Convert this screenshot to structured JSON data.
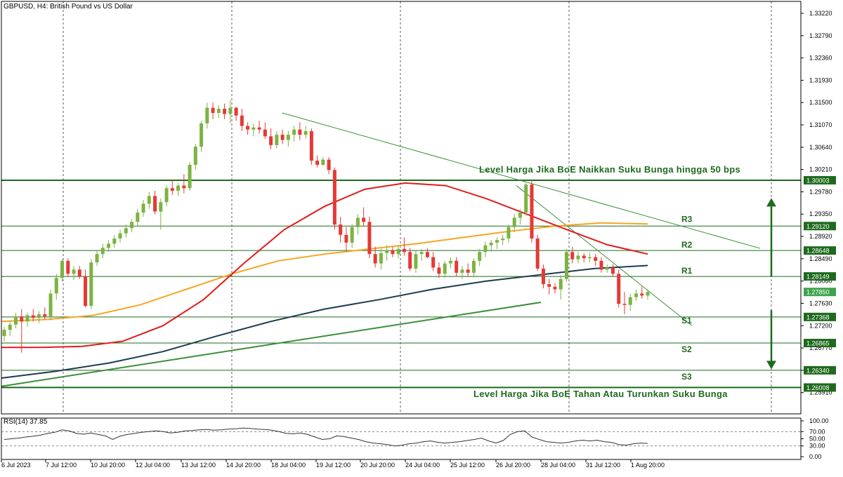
{
  "header": {
    "symbol_title": "GBPUSD, H4:  British Pound vs US Dollar",
    "rsi_title": "RSI(14) 37.85"
  },
  "colors": {
    "bull": "#7cb342",
    "bear": "#e53935",
    "ma_red": "#e31b1b",
    "ma_orange": "#f5a623",
    "ma_navy": "#1d3c4e",
    "level": "#1e6a1e",
    "trend": "#3a8f3a",
    "current_tag": "#3fa34d"
  },
  "chart_data": {
    "type": "candlestick",
    "symbol": "GBPUSD",
    "timeframe": "H4",
    "ylim": [
      1.255,
      1.3345
    ],
    "y_ticks": [
      "1.33220",
      "1.32790",
      "1.32360",
      "1.31930",
      "1.31500",
      "1.31070",
      "1.30640",
      "1.30210",
      "1.29780",
      "1.29350",
      "1.28920",
      "1.28490",
      "1.28060",
      "1.27630",
      "1.27200",
      "1.26770",
      "1.26340",
      "1.25910"
    ],
    "x_labels": [
      "6 Jul 2023",
      "7 Jul 12:00",
      "10 Jul 20:00",
      "12 Jul 04:00",
      "13 Jul 12:00",
      "14 Jul 20:00",
      "18 Jul 04:00",
      "19 Jul 12:00",
      "20 Jul 20:00",
      "24 Jul 04:00",
      "25 Jul 12:00",
      "26 Jul 20:00",
      "28 Jul 04:00",
      "31 Jul 12:00",
      "1 Aug 20:00"
    ],
    "current_price": "1.27850",
    "levels": [
      {
        "label": "",
        "value": 1.30003,
        "tag": "1.30003",
        "bold": true
      },
      {
        "label": "R3",
        "value": 1.2912,
        "tag": "1.29120",
        "bold": false
      },
      {
        "label": "R2",
        "value": 1.28648,
        "tag": "1.28648",
        "bold": false
      },
      {
        "label": "R1",
        "value": 1.28149,
        "tag": "1.28149",
        "bold": false
      },
      {
        "label": "S1",
        "value": 1.27368,
        "tag": "1.27368",
        "bold": false
      },
      {
        "label": "S2",
        "value": 1.26865,
        "tag": "1.26865",
        "bold": false
      },
      {
        "label": "S3",
        "value": 1.2634,
        "tag": "1.26340",
        "bold": false
      },
      {
        "label": "",
        "value": 1.26008,
        "tag": "1.26008",
        "bold": true
      }
    ],
    "annotations": {
      "upper": "Level Harga Jika BoE Naikkan Suku Bunga hingga 50 bps",
      "lower": "Level Harga Jika BoE Tahan Atau Turunkan Suku Bunga"
    },
    "candles": [
      {
        "o": 1.27,
        "h": 1.2718,
        "l": 1.269,
        "c": 1.2712
      },
      {
        "o": 1.2712,
        "h": 1.273,
        "l": 1.27,
        "c": 1.2722
      },
      {
        "o": 1.2722,
        "h": 1.2745,
        "l": 1.2715,
        "c": 1.2738
      },
      {
        "o": 1.2738,
        "h": 1.2752,
        "l": 1.2668,
        "c": 1.2728
      },
      {
        "o": 1.2728,
        "h": 1.2745,
        "l": 1.2718,
        "c": 1.274
      },
      {
        "o": 1.274,
        "h": 1.2752,
        "l": 1.2728,
        "c": 1.2735
      },
      {
        "o": 1.2735,
        "h": 1.2748,
        "l": 1.2725,
        "c": 1.2742
      },
      {
        "o": 1.2742,
        "h": 1.2755,
        "l": 1.2732,
        "c": 1.2738
      },
      {
        "o": 1.2738,
        "h": 1.279,
        "l": 1.273,
        "c": 1.2782
      },
      {
        "o": 1.2782,
        "h": 1.282,
        "l": 1.277,
        "c": 1.2812
      },
      {
        "o": 1.2812,
        "h": 1.2848,
        "l": 1.2805,
        "c": 1.2845
      },
      {
        "o": 1.2845,
        "h": 1.285,
        "l": 1.2815,
        "c": 1.282
      },
      {
        "o": 1.282,
        "h": 1.2835,
        "l": 1.2808,
        "c": 1.2828
      },
      {
        "o": 1.2828,
        "h": 1.2835,
        "l": 1.281,
        "c": 1.2815
      },
      {
        "o": 1.2815,
        "h": 1.2828,
        "l": 1.2755,
        "c": 1.2758
      },
      {
        "o": 1.2758,
        "h": 1.2848,
        "l": 1.2752,
        "c": 1.2842
      },
      {
        "o": 1.2842,
        "h": 1.2865,
        "l": 1.2835,
        "c": 1.2858
      },
      {
        "o": 1.2858,
        "h": 1.2878,
        "l": 1.285,
        "c": 1.287
      },
      {
        "o": 1.287,
        "h": 1.2885,
        "l": 1.2862,
        "c": 1.2878
      },
      {
        "o": 1.2878,
        "h": 1.2895,
        "l": 1.287,
        "c": 1.2888
      },
      {
        "o": 1.2888,
        "h": 1.2905,
        "l": 1.288,
        "c": 1.2898
      },
      {
        "o": 1.2898,
        "h": 1.2915,
        "l": 1.289,
        "c": 1.2908
      },
      {
        "o": 1.2908,
        "h": 1.2925,
        "l": 1.29,
        "c": 1.292
      },
      {
        "o": 1.292,
        "h": 1.2945,
        "l": 1.2912,
        "c": 1.2938
      },
      {
        "o": 1.2938,
        "h": 1.2962,
        "l": 1.293,
        "c": 1.2955
      },
      {
        "o": 1.2955,
        "h": 1.2978,
        "l": 1.2945,
        "c": 1.297
      },
      {
        "o": 1.297,
        "h": 1.298,
        "l": 1.2935,
        "c": 1.294
      },
      {
        "o": 1.294,
        "h": 1.2965,
        "l": 1.2905,
        "c": 1.2958
      },
      {
        "o": 1.2958,
        "h": 1.299,
        "l": 1.295,
        "c": 1.2985
      },
      {
        "o": 1.2985,
        "h": 1.3,
        "l": 1.2972,
        "c": 1.298
      },
      {
        "o": 1.298,
        "h": 1.2995,
        "l": 1.297,
        "c": 1.299
      },
      {
        "o": 1.299,
        "h": 1.3012,
        "l": 1.2975,
        "c": 1.2985
      },
      {
        "o": 1.2985,
        "h": 1.3035,
        "l": 1.298,
        "c": 1.303
      },
      {
        "o": 1.303,
        "h": 1.307,
        "l": 1.302,
        "c": 1.3065
      },
      {
        "o": 1.3065,
        "h": 1.3115,
        "l": 1.3055,
        "c": 1.311
      },
      {
        "o": 1.311,
        "h": 1.315,
        "l": 1.31,
        "c": 1.314
      },
      {
        "o": 1.314,
        "h": 1.315,
        "l": 1.3118,
        "c": 1.313
      },
      {
        "o": 1.313,
        "h": 1.3145,
        "l": 1.312,
        "c": 1.3138
      },
      {
        "o": 1.3138,
        "h": 1.3148,
        "l": 1.3118,
        "c": 1.3128
      },
      {
        "o": 1.3128,
        "h": 1.3155,
        "l": 1.311,
        "c": 1.314
      },
      {
        "o": 1.314,
        "h": 1.3142,
        "l": 1.3115,
        "c": 1.3125
      },
      {
        "o": 1.3125,
        "h": 1.3138,
        "l": 1.3095,
        "c": 1.3105
      },
      {
        "o": 1.3105,
        "h": 1.3112,
        "l": 1.3088,
        "c": 1.3098
      },
      {
        "o": 1.3098,
        "h": 1.311,
        "l": 1.3085,
        "c": 1.3102
      },
      {
        "o": 1.3102,
        "h": 1.3115,
        "l": 1.309,
        "c": 1.3098
      },
      {
        "o": 1.3098,
        "h": 1.3112,
        "l": 1.308,
        "c": 1.3085
      },
      {
        "o": 1.3085,
        "h": 1.31,
        "l": 1.306,
        "c": 1.3068
      },
      {
        "o": 1.3068,
        "h": 1.3095,
        "l": 1.3062,
        "c": 1.3088
      },
      {
        "o": 1.3088,
        "h": 1.3098,
        "l": 1.307,
        "c": 1.3078
      },
      {
        "o": 1.3078,
        "h": 1.3095,
        "l": 1.3065,
        "c": 1.3088
      },
      {
        "o": 1.3088,
        "h": 1.3105,
        "l": 1.3075,
        "c": 1.3098
      },
      {
        "o": 1.3098,
        "h": 1.3112,
        "l": 1.3078,
        "c": 1.3088
      },
      {
        "o": 1.3088,
        "h": 1.3105,
        "l": 1.308,
        "c": 1.3095
      },
      {
        "o": 1.3095,
        "h": 1.31,
        "l": 1.303,
        "c": 1.3038
      },
      {
        "o": 1.3038,
        "h": 1.3048,
        "l": 1.3025,
        "c": 1.303
      },
      {
        "o": 1.303,
        "h": 1.3045,
        "l": 1.3028,
        "c": 1.304
      },
      {
        "o": 1.304,
        "h": 1.3045,
        "l": 1.3012,
        "c": 1.302
      },
      {
        "o": 1.302,
        "h": 1.3025,
        "l": 1.2905,
        "c": 1.2915
      },
      {
        "o": 1.2915,
        "h": 1.293,
        "l": 1.288,
        "c": 1.2895
      },
      {
        "o": 1.2895,
        "h": 1.291,
        "l": 1.2865,
        "c": 1.288
      },
      {
        "o": 1.288,
        "h": 1.2915,
        "l": 1.287,
        "c": 1.291
      },
      {
        "o": 1.291,
        "h": 1.2935,
        "l": 1.2895,
        "c": 1.2928
      },
      {
        "o": 1.2928,
        "h": 1.2948,
        "l": 1.2912,
        "c": 1.292
      },
      {
        "o": 1.292,
        "h": 1.293,
        "l": 1.285,
        "c": 1.2858
      },
      {
        "o": 1.2858,
        "h": 1.2872,
        "l": 1.2832,
        "c": 1.284
      },
      {
        "o": 1.284,
        "h": 1.2868,
        "l": 1.2828,
        "c": 1.286
      },
      {
        "o": 1.286,
        "h": 1.2875,
        "l": 1.2845,
        "c": 1.2865
      },
      {
        "o": 1.2865,
        "h": 1.2872,
        "l": 1.2852,
        "c": 1.2858
      },
      {
        "o": 1.2858,
        "h": 1.2875,
        "l": 1.285,
        "c": 1.2868
      },
      {
        "o": 1.2868,
        "h": 1.289,
        "l": 1.2855,
        "c": 1.2862
      },
      {
        "o": 1.2862,
        "h": 1.287,
        "l": 1.2825,
        "c": 1.283
      },
      {
        "o": 1.283,
        "h": 1.2865,
        "l": 1.2822,
        "c": 1.2858
      },
      {
        "o": 1.2858,
        "h": 1.2868,
        "l": 1.2845,
        "c": 1.2862
      },
      {
        "o": 1.2862,
        "h": 1.287,
        "l": 1.285,
        "c": 1.2852
      },
      {
        "o": 1.2852,
        "h": 1.2862,
        "l": 1.2825,
        "c": 1.2832
      },
      {
        "o": 1.2832,
        "h": 1.2842,
        "l": 1.2812,
        "c": 1.282
      },
      {
        "o": 1.282,
        "h": 1.2845,
        "l": 1.2812,
        "c": 1.284
      },
      {
        "o": 1.284,
        "h": 1.2852,
        "l": 1.283,
        "c": 1.2845
      },
      {
        "o": 1.2845,
        "h": 1.2852,
        "l": 1.2815,
        "c": 1.2822
      },
      {
        "o": 1.2822,
        "h": 1.2835,
        "l": 1.281,
        "c": 1.2828
      },
      {
        "o": 1.2828,
        "h": 1.284,
        "l": 1.2815,
        "c": 1.2822
      },
      {
        "o": 1.2822,
        "h": 1.285,
        "l": 1.2815,
        "c": 1.2845
      },
      {
        "o": 1.2845,
        "h": 1.2868,
        "l": 1.2835,
        "c": 1.2862
      },
      {
        "o": 1.2862,
        "h": 1.2882,
        "l": 1.2852,
        "c": 1.2875
      },
      {
        "o": 1.2875,
        "h": 1.2885,
        "l": 1.2862,
        "c": 1.288
      },
      {
        "o": 1.288,
        "h": 1.289,
        "l": 1.2868,
        "c": 1.2885
      },
      {
        "o": 1.2885,
        "h": 1.2895,
        "l": 1.2875,
        "c": 1.2888
      },
      {
        "o": 1.2888,
        "h": 1.2915,
        "l": 1.288,
        "c": 1.291
      },
      {
        "o": 1.291,
        "h": 1.2935,
        "l": 1.29,
        "c": 1.2928
      },
      {
        "o": 1.2928,
        "h": 1.2945,
        "l": 1.2915,
        "c": 1.2938
      },
      {
        "o": 1.2938,
        "h": 1.2995,
        "l": 1.2932,
        "c": 1.2992
      },
      {
        "o": 1.2992,
        "h": 1.2998,
        "l": 1.288,
        "c": 1.2888
      },
      {
        "o": 1.2888,
        "h": 1.2895,
        "l": 1.2825,
        "c": 1.283
      },
      {
        "o": 1.283,
        "h": 1.2838,
        "l": 1.2792,
        "c": 1.28
      },
      {
        "o": 1.28,
        "h": 1.281,
        "l": 1.278,
        "c": 1.2795
      },
      {
        "o": 1.2795,
        "h": 1.2802,
        "l": 1.2782,
        "c": 1.279
      },
      {
        "o": 1.279,
        "h": 1.2818,
        "l": 1.277,
        "c": 1.281
      },
      {
        "o": 1.281,
        "h": 1.2868,
        "l": 1.2805,
        "c": 1.2862
      },
      {
        "o": 1.2862,
        "h": 1.2872,
        "l": 1.284,
        "c": 1.2848
      },
      {
        "o": 1.2848,
        "h": 1.2862,
        "l": 1.284,
        "c": 1.2855
      },
      {
        "o": 1.2855,
        "h": 1.286,
        "l": 1.2842,
        "c": 1.285
      },
      {
        "o": 1.285,
        "h": 1.286,
        "l": 1.2842,
        "c": 1.2852
      },
      {
        "o": 1.2852,
        "h": 1.2858,
        "l": 1.2835,
        "c": 1.2845
      },
      {
        "o": 1.2845,
        "h": 1.2852,
        "l": 1.2822,
        "c": 1.2828
      },
      {
        "o": 1.2828,
        "h": 1.2838,
        "l": 1.2822,
        "c": 1.2832
      },
      {
        "o": 1.2832,
        "h": 1.2838,
        "l": 1.2815,
        "c": 1.282
      },
      {
        "o": 1.282,
        "h": 1.2828,
        "l": 1.2755,
        "c": 1.2762
      },
      {
        "o": 1.2762,
        "h": 1.2785,
        "l": 1.2742,
        "c": 1.276
      },
      {
        "o": 1.276,
        "h": 1.2782,
        "l": 1.2748,
        "c": 1.2775
      },
      {
        "o": 1.2775,
        "h": 1.279,
        "l": 1.2768,
        "c": 1.2782
      },
      {
        "o": 1.2782,
        "h": 1.2795,
        "l": 1.2772,
        "c": 1.2778
      },
      {
        "o": 1.2778,
        "h": 1.279,
        "l": 1.277,
        "c": 1.2785
      }
    ],
    "ma_red": [
      1.2678,
      1.2678,
      1.268,
      1.269,
      1.272,
      1.277,
      1.284,
      1.2905,
      1.295,
      1.2983,
      1.2995,
      1.299,
      1.2965,
      1.2935,
      1.2905,
      1.2876,
      1.2858
    ],
    "ma_orange": [
      1.2728,
      1.2732,
      1.274,
      1.276,
      1.279,
      1.282,
      1.2845,
      1.2858,
      1.2868,
      1.2878,
      1.289,
      1.2902,
      1.2912,
      1.2918,
      1.2916
    ],
    "ma_navy": [
      1.2619,
      1.2632,
      1.2648,
      1.267,
      1.27,
      1.2728,
      1.2752,
      1.277,
      1.279,
      1.2806,
      1.2818,
      1.283,
      1.2836
    ],
    "rsi": {
      "ylim": [
        0,
        100
      ],
      "levels": [
        30,
        70
      ],
      "ticks": [
        "100.00",
        "70.00",
        "50.00",
        "30.00",
        "0.00"
      ],
      "values": [
        48,
        50,
        52,
        55,
        57,
        60,
        65,
        68,
        75,
        72,
        65,
        63,
        66,
        62,
        58,
        48,
        57,
        62,
        65,
        68,
        70,
        72,
        70,
        66,
        68,
        72,
        73,
        75,
        76,
        74,
        75,
        77,
        78,
        80,
        79,
        77,
        76,
        74,
        70,
        65,
        64,
        66,
        62,
        55,
        48,
        50,
        58,
        56,
        52,
        48,
        42,
        38,
        36,
        34,
        30,
        32,
        36,
        38,
        42,
        44,
        40,
        38,
        40,
        42,
        45,
        48,
        52,
        44,
        38,
        45,
        62,
        70,
        72,
        55,
        48,
        42,
        40,
        38,
        40,
        44,
        46,
        44,
        46,
        42,
        40,
        34,
        32,
        36,
        38,
        37
      ]
    }
  }
}
